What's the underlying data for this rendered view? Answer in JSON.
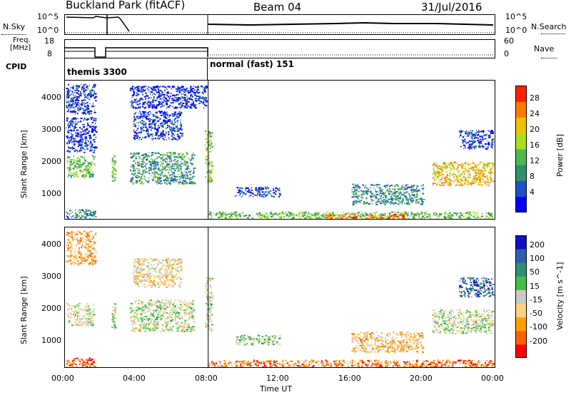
{
  "header": {
    "station": "Buckland Park (fitACF)",
    "beam": "Beam 04",
    "date": "31/Jul/2016"
  },
  "noise_panel": {
    "left_label": "N.Sky",
    "right_label": "N.Search",
    "left_ticks": [
      "10^5",
      "10^0"
    ],
    "right_ticks": [
      "10^5",
      "10^0"
    ]
  },
  "freq_panel": {
    "left_label_line1": "Freq.",
    "left_label_line2": "[MHz]",
    "right_label": "Nave",
    "left_ticks": [
      "18",
      "8"
    ],
    "right_ticks": [
      "60",
      "0"
    ]
  },
  "cpid": {
    "label": "CPID",
    "modes": [
      {
        "name": "themis 3300",
        "start_hour": 0,
        "end_hour": 8
      },
      {
        "name": "normal (fast) 151",
        "start_hour": 8,
        "end_hour": 24
      }
    ]
  },
  "x_axis": {
    "label": "Time UT",
    "ticks": [
      "00:00",
      "04:00",
      "08:00",
      "12:00",
      "16:00",
      "20:00",
      "00:00"
    ]
  },
  "colors": {
    "power_scale": [
      "#0000ff",
      "#1f4fc8",
      "#2f8f70",
      "#4fb850",
      "#a8e020",
      "#f0c000",
      "#ff7a00",
      "#ff2000"
    ],
    "velocity_scale": [
      "#ff0000",
      "#ff6000",
      "#ffa000",
      "#ffd080",
      "#c8c8c8",
      "#40c040",
      "#2f8f70",
      "#2f5faa",
      "#1010c0"
    ]
  },
  "chart_data": [
    {
      "type": "heatmap",
      "quantity": "power",
      "ylabel": "Slant Range [km]",
      "y_ticks": [
        "1000",
        "2000",
        "3000",
        "4000"
      ],
      "ylim": [
        180,
        4550
      ],
      "xlim_hours": [
        0,
        24
      ],
      "colorbar_label": "Power [dB]",
      "colorbar_ticks": [
        "4",
        "8",
        "12",
        "16",
        "20",
        "24",
        "28"
      ],
      "colorbar_range": [
        0,
        32
      ],
      "regions": [
        {
          "t0": 0.05,
          "t1": 1.7,
          "r0": 3500,
          "r1": 4450,
          "level": 0.15
        },
        {
          "t0": 0.05,
          "t1": 1.7,
          "r0": 2300,
          "r1": 3400,
          "level": 0.1
        },
        {
          "t0": 0.1,
          "t1": 1.6,
          "r0": 1500,
          "r1": 2200,
          "level": 0.45
        },
        {
          "t0": 0.05,
          "t1": 1.7,
          "r0": 200,
          "r1": 500,
          "level": 0.25
        },
        {
          "t0": 2.6,
          "t1": 2.8,
          "r0": 1400,
          "r1": 2200,
          "level": 0.4
        },
        {
          "t0": 3.6,
          "t1": 7.2,
          "r0": 1300,
          "r1": 2300,
          "level": 0.35
        },
        {
          "t0": 3.8,
          "t1": 6.5,
          "r0": 2700,
          "r1": 3600,
          "level": 0.15
        },
        {
          "t0": 3.6,
          "t1": 7.9,
          "r0": 3700,
          "r1": 4400,
          "level": 0.1
        },
        {
          "t0": 7.8,
          "t1": 8.2,
          "r0": 1300,
          "r1": 3000,
          "level": 0.5
        },
        {
          "t0": 8.0,
          "t1": 23.9,
          "r0": 200,
          "r1": 420,
          "level": 0.45
        },
        {
          "t0": 14.5,
          "t1": 19.0,
          "r0": 200,
          "r1": 360,
          "level": 0.85
        },
        {
          "t0": 9.5,
          "t1": 12.0,
          "r0": 900,
          "r1": 1200,
          "level": 0.15
        },
        {
          "t0": 16.0,
          "t1": 20.0,
          "r0": 650,
          "r1": 1300,
          "level": 0.3
        },
        {
          "t0": 20.5,
          "t1": 23.9,
          "r0": 1250,
          "r1": 2000,
          "level": 0.7
        },
        {
          "t0": 22.0,
          "t1": 23.9,
          "r0": 2400,
          "r1": 3000,
          "level": 0.15
        }
      ]
    },
    {
      "type": "heatmap",
      "quantity": "velocity",
      "ylabel": "Slant Range [km]",
      "y_ticks": [
        "1000",
        "2000",
        "3000",
        "4000"
      ],
      "ylim": [
        180,
        4550
      ],
      "xlim_hours": [
        0,
        24
      ],
      "colorbar_label": "Velocity [m s^-1]",
      "colorbar_ticks": [
        "-200",
        "-100",
        "-50",
        "-15",
        "15",
        "50",
        "100",
        "200"
      ],
      "colorbar_range": [
        -250,
        250
      ],
      "regions": [
        {
          "t0": 0.05,
          "t1": 1.7,
          "r0": 3400,
          "r1": 4450,
          "level": 0.3
        },
        {
          "t0": 0.1,
          "t1": 1.6,
          "r0": 1500,
          "r1": 2200,
          "level": 0.5
        },
        {
          "t0": 0.05,
          "t1": 1.7,
          "r0": 200,
          "r1": 500,
          "level": 0.1
        },
        {
          "t0": 2.6,
          "t1": 2.8,
          "r0": 1400,
          "r1": 2200,
          "level": 0.5
        },
        {
          "t0": 3.6,
          "t1": 7.2,
          "r0": 1300,
          "r1": 2300,
          "level": 0.5
        },
        {
          "t0": 3.8,
          "t1": 6.5,
          "r0": 2700,
          "r1": 3600,
          "level": 0.4
        },
        {
          "t0": 7.8,
          "t1": 8.2,
          "r0": 1300,
          "r1": 3000,
          "level": 0.5
        },
        {
          "t0": 8.0,
          "t1": 23.9,
          "r0": 200,
          "r1": 420,
          "level": 0.2
        },
        {
          "t0": 9.5,
          "t1": 12.0,
          "r0": 900,
          "r1": 1200,
          "level": 0.55
        },
        {
          "t0": 16.0,
          "t1": 20.0,
          "r0": 650,
          "r1": 1300,
          "level": 0.35
        },
        {
          "t0": 20.5,
          "t1": 23.9,
          "r0": 1250,
          "r1": 2000,
          "level": 0.5
        },
        {
          "t0": 22.0,
          "t1": 23.9,
          "r0": 2400,
          "r1": 3000,
          "level": 0.85
        }
      ]
    }
  ]
}
